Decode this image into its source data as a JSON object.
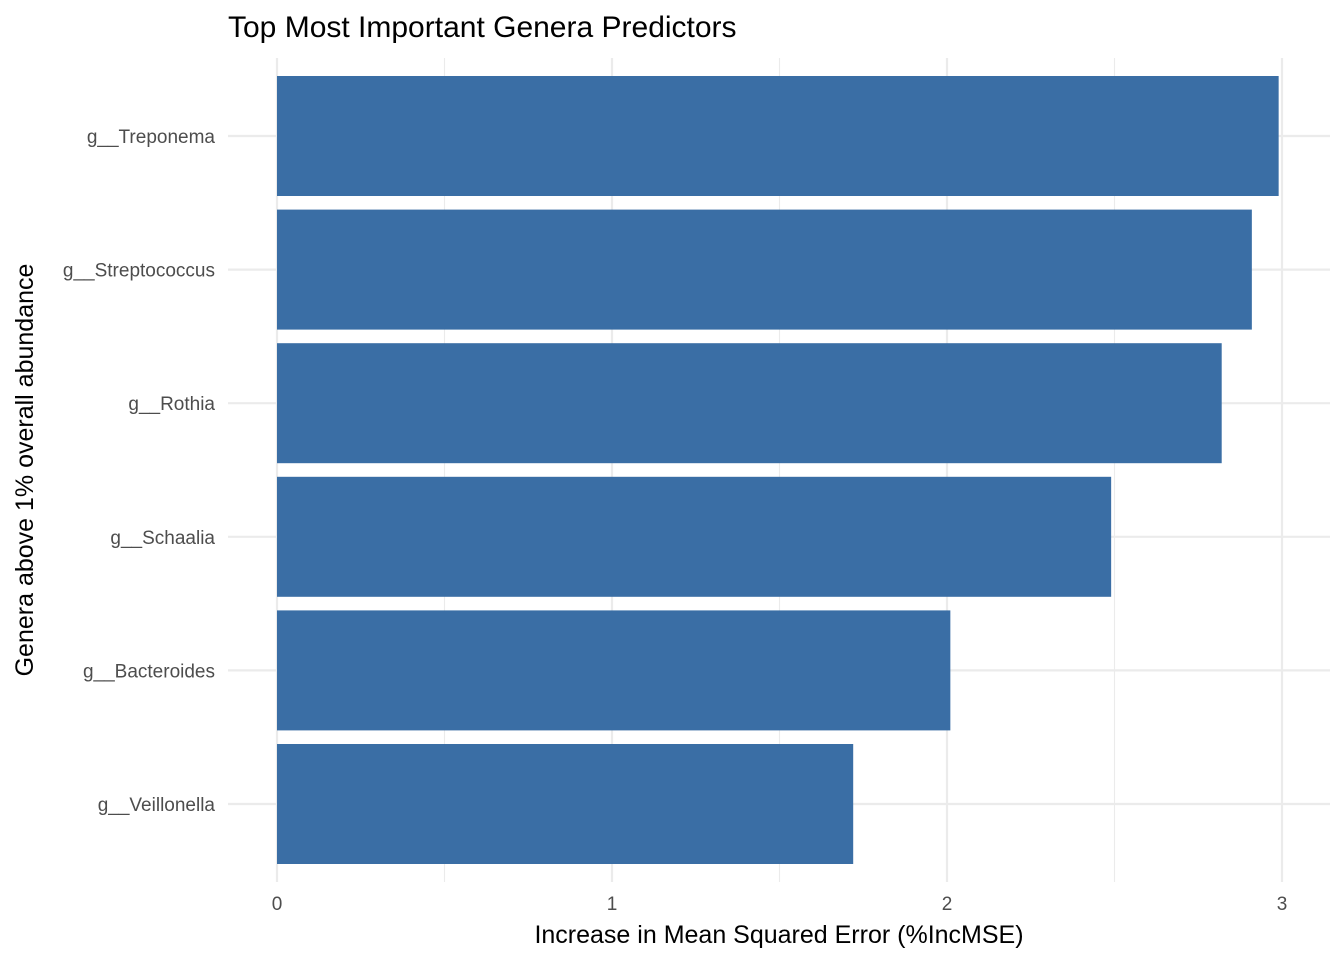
{
  "chart_data": {
    "type": "bar",
    "orientation": "horizontal",
    "title": "Top Most Important Genera Predictors",
    "xlabel": "Increase in Mean Squared Error (%IncMSE)",
    "ylabel": "Genera above 1% overall abundance",
    "categories": [
      "g__Treponema",
      "g__Streptococcus",
      "g__Rothia",
      "g__Schaalia",
      "g__Bacteroides",
      "g__Veillonella"
    ],
    "values": [
      2.99,
      2.91,
      2.82,
      2.49,
      2.01,
      1.72
    ],
    "xlim": [
      0,
      3
    ],
    "xticks": [
      "0",
      "1",
      "2",
      "3"
    ],
    "bar_color": "#3A6EA5",
    "grid": true,
    "legend": false
  }
}
